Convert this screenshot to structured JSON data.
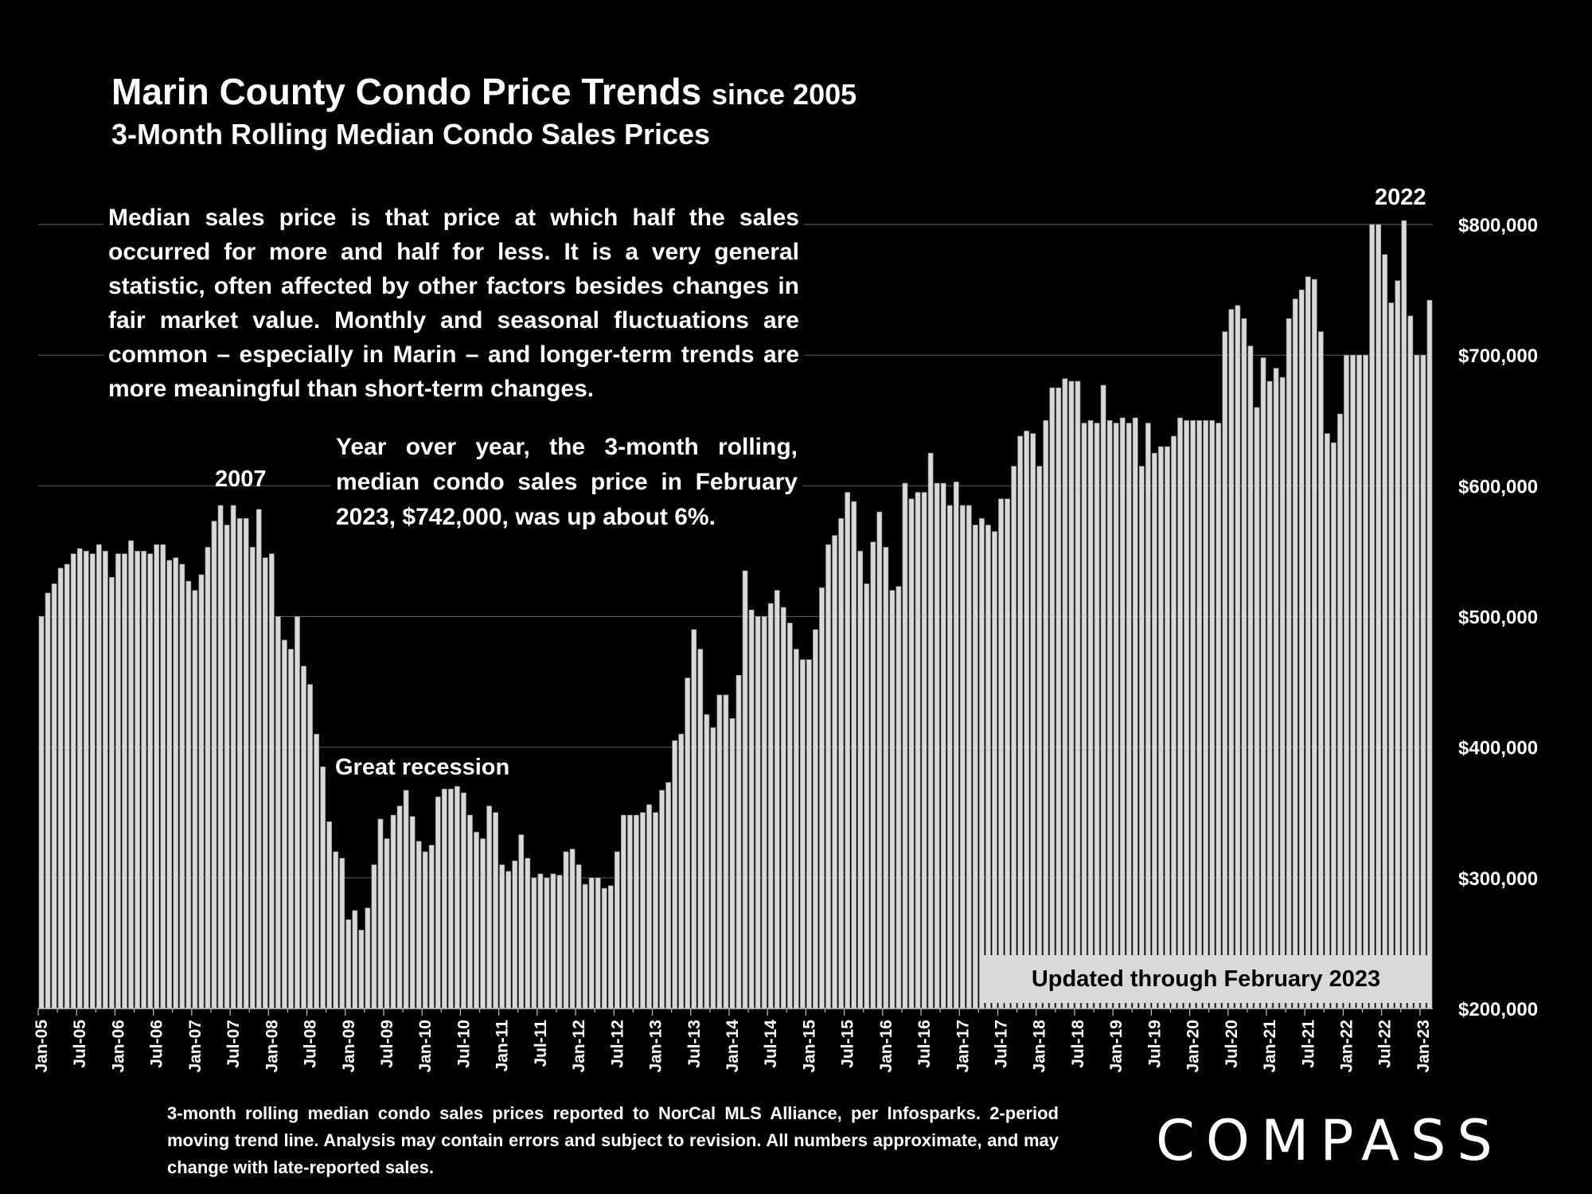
{
  "header": {
    "title": "Marin County Condo Price Trends",
    "title_suffix": "since 2005",
    "subtitle": "3-Month Rolling Median Condo Sales Prices"
  },
  "notes": {
    "definition": "Median sales price is that price at which half the sales occurred for more and half for less. It is a very general statistic, often affected by other factors besides changes in fair market value. Monthly and seasonal fluctuations are common – especially in Marin – and longer-term trends are more meaningful than short-term changes.",
    "yoy": "Year over year, the 3-month rolling, median condo sales price in February 2023, $742,000, was up about 6%."
  },
  "annotations": {
    "peak_2007": "2007",
    "peak_2022": "2022",
    "recession": "Great recession",
    "updated": "Updated through February 2023"
  },
  "footer": "3-month rolling median condo sales prices reported to NorCal MLS Alliance, per Infosparks. 2-period moving trend line. Analysis may contain errors and subject to revision. All numbers approximate, and may change with late-reported sales.",
  "logo": "COMPASS",
  "colors": {
    "background": "#000000",
    "bar": "#d9d9d9",
    "bar_edge": "#8c8c8c",
    "grid": "#555555",
    "text": "#ffffff"
  },
  "chart_data": {
    "type": "bar",
    "title": "Marin County Condo Price Trends since 2005",
    "subtitle": "3-Month Rolling Median Condo Sales Prices",
    "x_start": "Jan-05",
    "x_end": "Feb-23",
    "ylim": [
      200000,
      800000
    ],
    "y_ticks": [
      200000,
      300000,
      400000,
      500000,
      600000,
      700000,
      800000
    ],
    "y_tick_labels": [
      "$200,000",
      "$300,000",
      "$400,000",
      "$500,000",
      "$600,000",
      "$700,000",
      "$800,000"
    ],
    "x_tick_labels": [
      "Jan-05",
      "Jul-05",
      "Jan-06",
      "Jul-06",
      "Jan-07",
      "Jul-07",
      "Jan-08",
      "Jul-08",
      "Jan-09",
      "Jul-09",
      "Jan-10",
      "Jul-10",
      "Jan-11",
      "Jul-11",
      "Jan-12",
      "Jul-12",
      "Jan-13",
      "Jul-13",
      "Jan-14",
      "Jul-14",
      "Jan-15",
      "Jul-15",
      "Jan-16",
      "Jul-16",
      "Jan-17",
      "Jul-17",
      "Jan-18",
      "Jul-18",
      "Jan-19",
      "Jul-19",
      "Jan-20",
      "Jul-20",
      "Jan-21",
      "Jul-21",
      "Jan-22",
      "Jul-22",
      "Jan-23"
    ],
    "grid": "horizontal",
    "values": [
      500000,
      518000,
      525000,
      537000,
      540000,
      548000,
      552000,
      550000,
      548000,
      555000,
      550000,
      530000,
      548000,
      548000,
      558000,
      550000,
      550000,
      548000,
      555000,
      555000,
      543000,
      545000,
      540000,
      527000,
      520000,
      532000,
      553000,
      573000,
      585000,
      570000,
      585000,
      575000,
      575000,
      553000,
      582000,
      545000,
      548000,
      500000,
      482000,
      475000,
      500000,
      462000,
      448000,
      410000,
      385000,
      343000,
      320000,
      315000,
      268000,
      275000,
      260000,
      277000,
      310000,
      345000,
      330000,
      348000,
      355000,
      367000,
      347000,
      328000,
      320000,
      325000,
      362000,
      368000,
      368000,
      370000,
      365000,
      348000,
      335000,
      330000,
      355000,
      350000,
      310000,
      305000,
      313000,
      333000,
      315000,
      300000,
      303000,
      300000,
      303000,
      302000,
      320000,
      322000,
      310000,
      295000,
      300000,
      300000,
      292000,
      294000,
      320000,
      348000,
      348000,
      348000,
      350000,
      356000,
      350000,
      367000,
      373000,
      405000,
      410000,
      453000,
      490000,
      475000,
      425000,
      415000,
      440000,
      440000,
      422000,
      455000,
      535000,
      505000,
      500000,
      500000,
      510000,
      520000,
      507000,
      495000,
      475000,
      467000,
      467000,
      490000,
      522000,
      555000,
      562000,
      575000,
      595000,
      588000,
      550000,
      525000,
      557000,
      580000,
      553000,
      520000,
      523000,
      602000,
      590000,
      595000,
      595000,
      625000,
      602000,
      602000,
      585000,
      603000,
      585000,
      585000,
      570000,
      575000,
      570000,
      565000,
      590000,
      590000,
      615000,
      638000,
      642000,
      640000,
      615000,
      650000,
      675000,
      675000,
      682000,
      680000,
      680000,
      648000,
      650000,
      648000,
      677000,
      650000,
      648000,
      652000,
      648000,
      652000,
      615000,
      648000,
      625000,
      630000,
      630000,
      638000,
      652000,
      650000,
      650000,
      650000,
      650000,
      650000,
      648000,
      718000,
      735000,
      738000,
      728000,
      707000,
      660000,
      698000,
      680000,
      690000,
      683000,
      728000,
      743000,
      750000,
      760000,
      758000,
      718000,
      640000,
      633000,
      655000,
      700000,
      700000,
      700000,
      700000,
      800000,
      800000,
      777000,
      740000,
      757000,
      803000,
      730000,
      700000,
      700000,
      742000
    ]
  }
}
